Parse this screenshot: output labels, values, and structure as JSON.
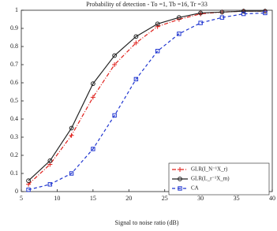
{
  "chart_data": {
    "type": "line",
    "title": "Probability of detection - To =1, Tb =16, Tr =33",
    "x_label": "Signal to noise ratio (dB)",
    "x": [
      6,
      9,
      12,
      15,
      18,
      21,
      24,
      27,
      30,
      33,
      36,
      39
    ],
    "series": [
      {
        "name": "GLR(I_N⁻¹X_r)",
        "color": "#e0201b",
        "dash": "5,2,1,2",
        "marker": "plus",
        "values": [
          0.04,
          0.15,
          0.31,
          0.52,
          0.7,
          0.82,
          0.91,
          0.95,
          0.98,
          0.99,
          0.995,
          0.995
        ]
      },
      {
        "name": "GLR(L_r⁻¹X_m)",
        "color": "#222222",
        "dash": "",
        "marker": "circle",
        "values": [
          0.06,
          0.17,
          0.35,
          0.595,
          0.75,
          0.855,
          0.925,
          0.96,
          0.985,
          0.99,
          0.995,
          0.995
        ]
      },
      {
        "name": "CA",
        "color": "#1f35d0",
        "dash": "4,3",
        "marker": "square",
        "values": [
          0.01,
          0.04,
          0.1,
          0.235,
          0.42,
          0.62,
          0.775,
          0.87,
          0.93,
          0.96,
          0.98,
          0.985
        ]
      }
    ],
    "xlim": [
      5,
      40
    ],
    "xticks": [
      5,
      10,
      15,
      20,
      25,
      30,
      35,
      40
    ],
    "ylim": [
      0,
      1
    ],
    "yticks": [
      0,
      0.1,
      0.2,
      0.3,
      0.4,
      0.5,
      0.6,
      0.7,
      0.8,
      0.9,
      1
    ],
    "legend": "lower right"
  }
}
